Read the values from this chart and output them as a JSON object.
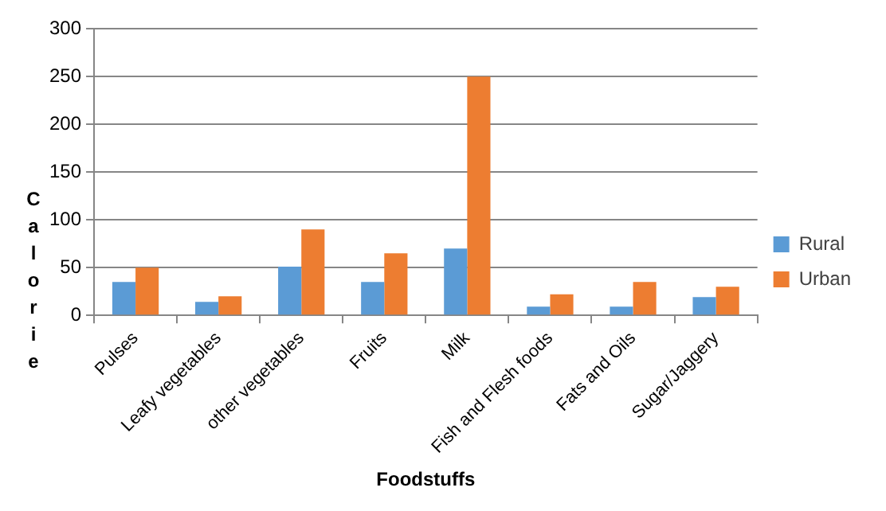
{
  "chart_data": {
    "type": "bar",
    "xlabel": "Foodstuffs",
    "ylabel": "Calorie",
    "categories": [
      "Pulses",
      "Leafy vegetables",
      "other vegetables",
      "Fruits",
      "Milk",
      "Fish and Flesh foods",
      "Fats and Oils",
      "Sugar/Jaggery"
    ],
    "series": [
      {
        "name": "Rural",
        "color": "#5b9bd5",
        "values": [
          35,
          14,
          51,
          35,
          70,
          9,
          9,
          19
        ]
      },
      {
        "name": "Urban",
        "color": "#ed7d31",
        "values": [
          50,
          20,
          90,
          65,
          250,
          22,
          35,
          30
        ]
      }
    ],
    "ylim": [
      0,
      300
    ],
    "yticks": [
      0,
      50,
      100,
      150,
      200,
      250,
      300
    ],
    "grid": "y",
    "legend": "right"
  }
}
